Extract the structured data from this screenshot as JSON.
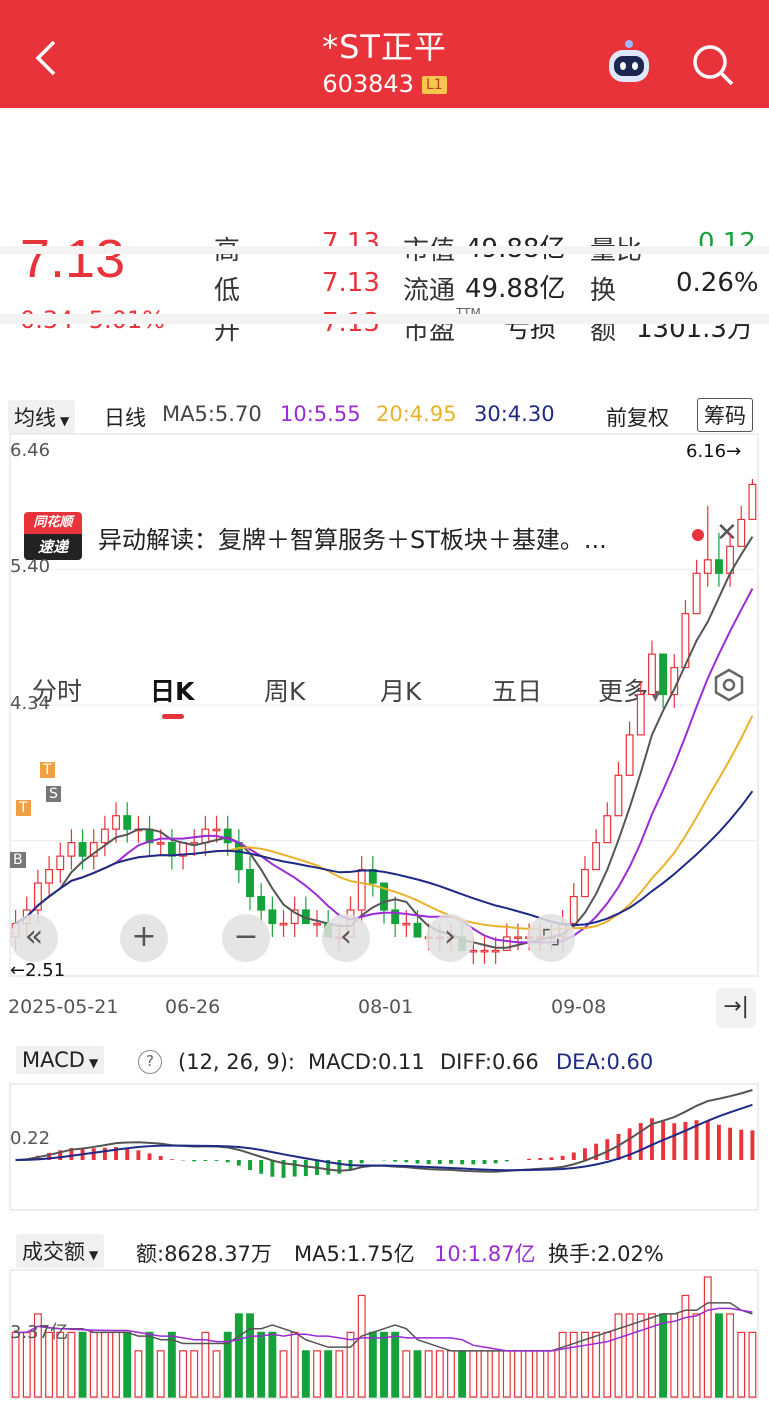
{
  "header": {
    "title": "*ST正平",
    "code": "603843",
    "badge": "L1"
  },
  "quote": {
    "price": "7.13",
    "change": "0.34",
    "change_pct": "5.01%",
    "high_label": "高",
    "high": "7.13",
    "low_label": "低",
    "low": "7.13",
    "open_label": "开",
    "open": "7.13",
    "mktcap_label": "市值",
    "mktcap": "49.88亿",
    "float_label": "流通",
    "float": "49.88亿",
    "pe_label": "市盈",
    "pe_sup": "TTM",
    "pe": "亏损",
    "volratio_label": "量比",
    "volratio": "0.12",
    "turnover_label": "换",
    "turnover": "0.26%",
    "amount_label": "额",
    "amount": "1301.3万"
  },
  "news": {
    "icon_top": "同花顺",
    "icon_bottom": "速递",
    "text": "异动解读：复牌＋智算服务＋ST板块＋基建。..."
  },
  "tabs": [
    "分时",
    "日K",
    "周K",
    "月K",
    "五日",
    "更多"
  ],
  "active_tab": 1,
  "ma_bar": {
    "selector": "均线",
    "period": "日线",
    "ma5": "MA5:5.70",
    "ma10": "10:5.55",
    "ma20": "20:4.95",
    "ma30": "30:4.30",
    "adjust": "前复权",
    "chips": "筹码"
  },
  "colors": {
    "up": "#e8333a",
    "down": "#16a23a",
    "ma5": "#555555",
    "ma10": "#9b2bd6",
    "ma20": "#e8b22a",
    "ma30": "#1f2a86"
  },
  "kline": {
    "y_labels": [
      "6.46",
      "5.40",
      "4.34"
    ],
    "max_label": "6.16→",
    "min_label": "←2.51",
    "dates": [
      "2025-05-21",
      "06-26",
      "08-01",
      "09-08"
    ],
    "marks": [
      "T",
      "S",
      "T",
      "B"
    ]
  },
  "controls": {
    "back": "«",
    "zoom_in": "+",
    "zoom_out": "−",
    "prev": "‹",
    "next": "›",
    "expand": "⌜⌟"
  },
  "macd": {
    "selector": "MACD",
    "params": "(12, 26, 9):",
    "macd": "MACD:0.11",
    "diff": "DIFF:0.66",
    "dea": "DEA:0.60",
    "y_label": "0.22"
  },
  "volume": {
    "selector": "成交额",
    "amount": "额:8628.37万",
    "ma5": "MA5:1.75亿",
    "ma10": "10:1.87亿",
    "turnover": "换手:2.02%",
    "y_label": "3.37亿"
  },
  "chart_data": {
    "type": "candlestick",
    "series": [
      {
        "name": "均线",
        "points": [
          [
            2.8,
            3.0,
            2.7,
            2.9
          ],
          [
            2.9,
            3.1,
            2.8,
            3.0
          ],
          [
            3.0,
            3.3,
            2.9,
            3.2
          ],
          [
            3.2,
            3.4,
            3.1,
            3.3
          ],
          [
            3.3,
            3.5,
            3.2,
            3.4
          ],
          [
            3.4,
            3.6,
            3.3,
            3.5
          ],
          [
            3.5,
            3.6,
            3.3,
            3.4
          ],
          [
            3.4,
            3.6,
            3.3,
            3.5
          ],
          [
            3.5,
            3.7,
            3.4,
            3.6
          ],
          [
            3.6,
            3.8,
            3.5,
            3.7
          ],
          [
            3.7,
            3.8,
            3.5,
            3.6
          ],
          [
            3.6,
            3.7,
            3.5,
            3.6
          ],
          [
            3.6,
            3.7,
            3.4,
            3.5
          ],
          [
            3.5,
            3.6,
            3.4,
            3.5
          ],
          [
            3.5,
            3.6,
            3.3,
            3.4
          ],
          [
            3.4,
            3.5,
            3.3,
            3.5
          ],
          [
            3.5,
            3.6,
            3.4,
            3.5
          ],
          [
            3.5,
            3.7,
            3.4,
            3.6
          ],
          [
            3.6,
            3.7,
            3.5,
            3.6
          ],
          [
            3.6,
            3.7,
            3.4,
            3.5
          ],
          [
            3.5,
            3.6,
            3.2,
            3.3
          ],
          [
            3.3,
            3.4,
            3.0,
            3.1
          ],
          [
            3.1,
            3.2,
            2.9,
            3.0
          ],
          [
            3.0,
            3.1,
            2.8,
            2.9
          ],
          [
            2.9,
            3.0,
            2.8,
            2.9
          ],
          [
            2.9,
            3.1,
            2.8,
            3.0
          ],
          [
            3.0,
            3.1,
            2.9,
            2.9
          ],
          [
            2.9,
            3.0,
            2.8,
            2.9
          ],
          [
            2.9,
            3.0,
            2.8,
            2.8
          ],
          [
            2.8,
            2.9,
            2.7,
            2.8
          ],
          [
            2.8,
            3.1,
            2.8,
            3.0
          ],
          [
            3.0,
            3.4,
            2.9,
            3.3
          ],
          [
            3.3,
            3.4,
            3.1,
            3.2
          ],
          [
            3.2,
            3.2,
            2.9,
            3.0
          ],
          [
            3.0,
            3.1,
            2.8,
            2.9
          ],
          [
            2.9,
            3.0,
            2.8,
            2.9
          ],
          [
            2.9,
            3.0,
            2.8,
            2.8
          ],
          [
            2.8,
            2.9,
            2.7,
            2.8
          ],
          [
            2.8,
            2.9,
            2.7,
            2.8
          ],
          [
            2.8,
            2.9,
            2.7,
            2.8
          ],
          [
            2.8,
            2.9,
            2.7,
            2.7
          ],
          [
            2.7,
            2.8,
            2.6,
            2.7
          ],
          [
            2.7,
            2.8,
            2.6,
            2.7
          ],
          [
            2.7,
            2.8,
            2.6,
            2.7
          ],
          [
            2.7,
            2.9,
            2.7,
            2.8
          ],
          [
            2.8,
            2.9,
            2.7,
            2.8
          ],
          [
            2.8,
            2.9,
            2.7,
            2.8
          ],
          [
            2.8,
            2.9,
            2.7,
            2.8
          ],
          [
            2.8,
            2.9,
            2.7,
            2.8
          ],
          [
            2.8,
            3.0,
            2.7,
            2.9
          ],
          [
            2.9,
            3.2,
            2.9,
            3.1
          ],
          [
            3.1,
            3.4,
            3.1,
            3.3
          ],
          [
            3.3,
            3.6,
            3.3,
            3.5
          ],
          [
            3.5,
            3.8,
            3.5,
            3.7
          ],
          [
            3.7,
            4.1,
            3.7,
            4.0
          ],
          [
            4.0,
            4.4,
            4.0,
            4.3
          ],
          [
            4.3,
            4.7,
            4.3,
            4.6
          ],
          [
            4.6,
            5.0,
            4.6,
            4.9
          ],
          [
            4.9,
            4.9,
            4.5,
            4.6
          ],
          [
            4.6,
            4.9,
            4.5,
            4.8
          ],
          [
            4.8,
            5.3,
            4.8,
            5.2
          ],
          [
            5.2,
            5.6,
            5.2,
            5.5
          ],
          [
            5.5,
            6.0,
            5.4,
            5.6
          ],
          [
            5.6,
            5.8,
            5.4,
            5.5
          ],
          [
            5.5,
            5.8,
            5.4,
            5.7
          ],
          [
            5.7,
            6.0,
            5.7,
            5.9
          ],
          [
            5.9,
            6.2,
            5.9,
            6.16
          ]
        ]
      }
    ],
    "ylim": [
      2.51,
      6.46
    ]
  }
}
